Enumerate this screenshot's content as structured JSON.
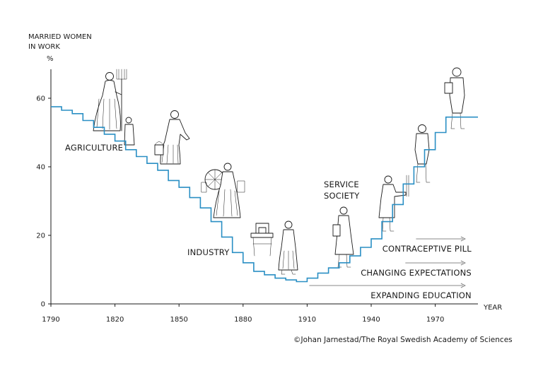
{
  "chart_data": {
    "type": "line",
    "step": true,
    "ylabel_lines": [
      "MARRIED WOMEN",
      "IN WORK"
    ],
    "y_unit": "%",
    "xlabel": "YEAR",
    "x_ticks": [
      "1790",
      "1820",
      "1850",
      "1880",
      "1910",
      "1940",
      "1970"
    ],
    "y_ticks": [
      "0",
      "20",
      "40",
      "60"
    ],
    "xlim": [
      1790,
      1990
    ],
    "ylim": [
      0,
      70
    ],
    "series": [
      {
        "line_color": "#2a8fc4",
        "x": [
          1790,
          1795,
          1800,
          1805,
          1810,
          1815,
          1820,
          1825,
          1830,
          1835,
          1840,
          1845,
          1850,
          1855,
          1860,
          1865,
          1870,
          1875,
          1880,
          1885,
          1890,
          1895,
          1900,
          1905,
          1910,
          1915,
          1920,
          1925,
          1930,
          1935,
          1940,
          1945,
          1950,
          1955,
          1960,
          1965,
          1970,
          1975,
          1980,
          1985
        ],
        "values": [
          57.5,
          56.5,
          55.5,
          53.5,
          51.5,
          49.5,
          47.5,
          45,
          43,
          41,
          39,
          36,
          34,
          31,
          28,
          24,
          19.5,
          15,
          12,
          9.5,
          8.5,
          7.5,
          7,
          6.5,
          7.5,
          9,
          10.5,
          12,
          14,
          16.5,
          19,
          24,
          29,
          35,
          40,
          45,
          50,
          54.5,
          54.5,
          54.5
        ]
      }
    ],
    "annotations": [
      "AGRICULTURE",
      "INDUSTRY",
      "SERVICE",
      "SOCIETY"
    ],
    "arrows": [
      {
        "label": "CONTRACEPTIVE PILL",
        "start_year": 1961,
        "end_year": 1984
      },
      {
        "label": "CHANGING EXPECTATIONS",
        "start_year": 1956,
        "end_year": 1984
      },
      {
        "label": "EXPANDING EDUCATION",
        "start_year": 1911,
        "end_year": 1984
      }
    ],
    "grid": false
  },
  "credit": "©Johan Jarnestad/The Royal Swedish Academy of Sciences",
  "colors": {
    "line": "#2a8fc4",
    "axis": "#1a1a1a",
    "arrow": "#8a8a8a"
  }
}
